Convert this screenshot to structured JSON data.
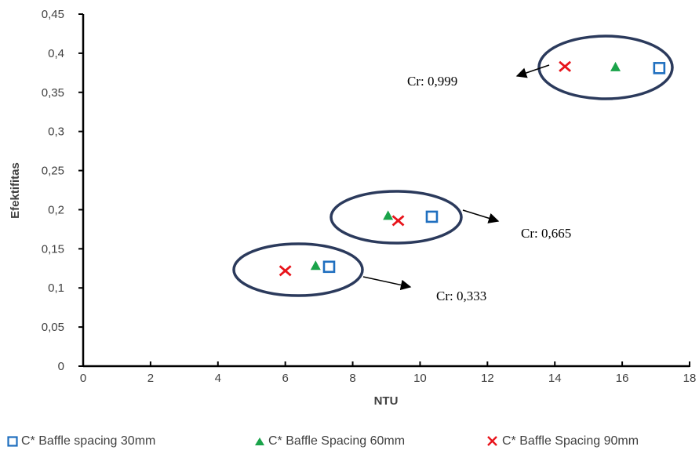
{
  "chart_data": {
    "type": "scatter",
    "title": "",
    "xlabel": "NTU",
    "ylabel": "Efektifitas",
    "xlim": [
      0,
      18
    ],
    "ylim": [
      0,
      0.45
    ],
    "xticks": [
      "0",
      "2",
      "4",
      "6",
      "8",
      "10",
      "12",
      "14",
      "16",
      "18"
    ],
    "yticks": [
      "0",
      "0,05",
      "0,1",
      "0,15",
      "0,2",
      "0,25",
      "0,3",
      "0,35",
      "0,4",
      "0,45"
    ],
    "grid": false,
    "legend_position": "bottom",
    "series": [
      {
        "name": "C* Baffle spacing 30mm",
        "marker": "square",
        "color": "#1f6fbf",
        "points": [
          [
            7.3,
            0.127
          ],
          [
            10.35,
            0.191
          ],
          [
            17.1,
            0.381
          ]
        ]
      },
      {
        "name": "C* Baffle Spacing 60mm",
        "marker": "triangle",
        "color": "#1aa34a",
        "points": [
          [
            6.9,
            0.128
          ],
          [
            9.05,
            0.192
          ],
          [
            15.8,
            0.382
          ]
        ]
      },
      {
        "name": "C* Baffle Spacing 90mm",
        "marker": "x",
        "color": "#e8141b",
        "points": [
          [
            6.0,
            0.122
          ],
          [
            9.35,
            0.186
          ],
          [
            14.3,
            0.383
          ]
        ]
      }
    ],
    "annotations": [
      {
        "text": "Cr: 0,333"
      },
      {
        "text": "Cr: 0,665"
      },
      {
        "text": "Cr: 0,999"
      }
    ]
  }
}
